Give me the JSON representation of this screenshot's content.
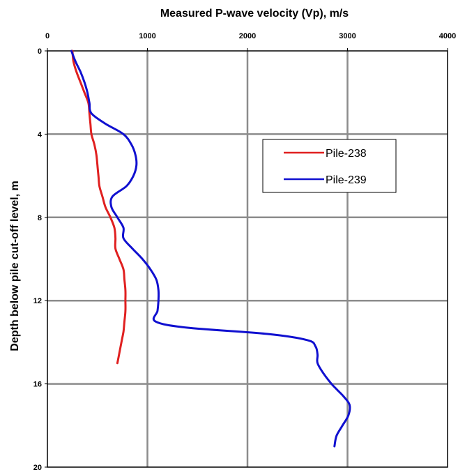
{
  "chart_data": {
    "type": "line",
    "title": "",
    "xlabel": "Measured P-wave velocity (Vp), m/s",
    "ylabel": "Depth below pile cut-off level, m",
    "xlim": [
      0,
      4000
    ],
    "ylim": [
      0,
      20
    ],
    "y_inverted": true,
    "x_axis_position": "top",
    "x_ticks": [
      "0",
      "1000",
      "2000",
      "3000",
      "4000"
    ],
    "y_ticks": [
      "0",
      "4",
      "8",
      "12",
      "16",
      "20"
    ],
    "grid": true,
    "legend_position": "upper-right",
    "series": [
      {
        "name": "Pile-238",
        "color": "#e02020",
        "points": [
          [
            250,
            0
          ],
          [
            260,
            0.5
          ],
          [
            290,
            1
          ],
          [
            330,
            1.5
          ],
          [
            370,
            2
          ],
          [
            410,
            2.5
          ],
          [
            420,
            3
          ],
          [
            430,
            3.5
          ],
          [
            440,
            4
          ],
          [
            470,
            4.5
          ],
          [
            490,
            5
          ],
          [
            500,
            5.5
          ],
          [
            510,
            6
          ],
          [
            520,
            6.5
          ],
          [
            550,
            7
          ],
          [
            580,
            7.5
          ],
          [
            630,
            8
          ],
          [
            670,
            8.5
          ],
          [
            680,
            9
          ],
          [
            680,
            9.5
          ],
          [
            720,
            10
          ],
          [
            760,
            10.5
          ],
          [
            770,
            11
          ],
          [
            780,
            11.5
          ],
          [
            780,
            12
          ],
          [
            780,
            12.5
          ],
          [
            770,
            13
          ],
          [
            760,
            13.5
          ],
          [
            740,
            14
          ],
          [
            720,
            14.5
          ],
          [
            700,
            15
          ]
        ]
      },
      {
        "name": "Pile-239",
        "color": "#1010d0",
        "points": [
          [
            240,
            0
          ],
          [
            280,
            0.5
          ],
          [
            330,
            1
          ],
          [
            370,
            1.5
          ],
          [
            400,
            2
          ],
          [
            420,
            2.5
          ],
          [
            440,
            3
          ],
          [
            580,
            3.5
          ],
          [
            760,
            4
          ],
          [
            840,
            4.5
          ],
          [
            880,
            5
          ],
          [
            890,
            5.5
          ],
          [
            860,
            6
          ],
          [
            790,
            6.5
          ],
          [
            650,
            7
          ],
          [
            640,
            7.5
          ],
          [
            700,
            8
          ],
          [
            760,
            8.5
          ],
          [
            760,
            9
          ],
          [
            850,
            9.5
          ],
          [
            950,
            10
          ],
          [
            1030,
            10.5
          ],
          [
            1090,
            11
          ],
          [
            1110,
            11.5
          ],
          [
            1110,
            12
          ],
          [
            1100,
            12.5
          ],
          [
            1080,
            13
          ],
          [
            1400,
            13.3
          ],
          [
            2200,
            13.6
          ],
          [
            2600,
            13.9
          ],
          [
            2680,
            14.2
          ],
          [
            2700,
            14.6
          ],
          [
            2700,
            15
          ],
          [
            2760,
            15.5
          ],
          [
            2840,
            16
          ],
          [
            2900,
            16.3
          ],
          [
            2960,
            16.6
          ],
          [
            3020,
            17
          ],
          [
            3010,
            17.5
          ],
          [
            2950,
            18
          ],
          [
            2890,
            18.5
          ],
          [
            2870,
            19
          ]
        ]
      }
    ]
  }
}
